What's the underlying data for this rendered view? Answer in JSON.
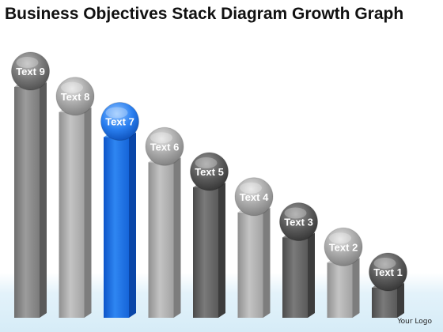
{
  "title": "Business Objectives Stack Diagram Growth Graph",
  "logo": "Your Logo",
  "colors": {
    "background": "#ffffff",
    "floor_band": "#dff0f8",
    "bar_gray": "#8a8a8a",
    "highlight_blue": "#1f6fe0"
  },
  "items": [
    {
      "label": "Text 9",
      "level": 9,
      "highlight": false,
      "tone": "mid"
    },
    {
      "label": "Text 8",
      "level": 8,
      "highlight": false,
      "tone": "light"
    },
    {
      "label": "Text 7",
      "level": 7,
      "highlight": true,
      "tone": "blue"
    },
    {
      "label": "Text 6",
      "level": 6,
      "highlight": false,
      "tone": "light"
    },
    {
      "label": "Text 5",
      "level": 5,
      "highlight": false,
      "tone": "dark"
    },
    {
      "label": "Text 4",
      "level": 4,
      "highlight": false,
      "tone": "light"
    },
    {
      "label": "Text 3",
      "level": 3,
      "highlight": false,
      "tone": "dark"
    },
    {
      "label": "Text 2",
      "level": 2,
      "highlight": false,
      "tone": "light"
    },
    {
      "label": "Text 1",
      "level": 1,
      "highlight": false,
      "tone": "dark"
    }
  ]
}
